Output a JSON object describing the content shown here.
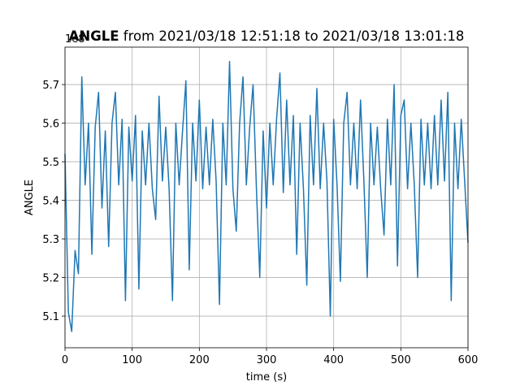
{
  "chart_data": {
    "type": "line",
    "title_variable": "ANGLE",
    "title_range": "from 2021/03/18 12:51:18 to 2021/03/18 13:01:18",
    "offset_label": "1e8",
    "xlabel": "time (s)",
    "ylabel": "ANGLE",
    "xlim": [
      0,
      600
    ],
    "ylim": [
      5.018,
      5.797
    ],
    "xticks": [
      0,
      100,
      200,
      300,
      400,
      500,
      600
    ],
    "yticks": [
      5.1,
      5.2,
      5.3,
      5.4,
      5.5,
      5.6,
      5.7
    ],
    "grid": true,
    "x": [
      0,
      5,
      10,
      15,
      20,
      25,
      30,
      35,
      40,
      45,
      50,
      55,
      60,
      65,
      70,
      75,
      80,
      85,
      90,
      95,
      100,
      105,
      110,
      115,
      120,
      125,
      130,
      135,
      140,
      145,
      150,
      155,
      160,
      165,
      170,
      175,
      180,
      185,
      190,
      195,
      200,
      205,
      210,
      215,
      220,
      225,
      230,
      235,
      240,
      245,
      250,
      255,
      260,
      265,
      270,
      275,
      280,
      285,
      290,
      295,
      300,
      305,
      310,
      315,
      320,
      325,
      330,
      335,
      340,
      345,
      350,
      355,
      360,
      365,
      370,
      375,
      380,
      385,
      390,
      395,
      400,
      405,
      410,
      415,
      420,
      425,
      430,
      435,
      440,
      445,
      450,
      455,
      460,
      465,
      470,
      475,
      480,
      485,
      490,
      495,
      500,
      505,
      510,
      515,
      520,
      525,
      530,
      535,
      540,
      545,
      550,
      555,
      560,
      565,
      570,
      575,
      580,
      585,
      590,
      595,
      600
    ],
    "series": [
      {
        "name": "ANGLE",
        "color": "#1f77b4",
        "values": [
          5.52,
          5.11,
          5.06,
          5.27,
          5.21,
          5.72,
          5.44,
          5.6,
          5.26,
          5.59,
          5.68,
          5.38,
          5.58,
          5.28,
          5.6,
          5.68,
          5.44,
          5.61,
          5.14,
          5.59,
          5.45,
          5.62,
          5.17,
          5.58,
          5.44,
          5.6,
          5.43,
          5.35,
          5.67,
          5.45,
          5.59,
          5.43,
          5.14,
          5.6,
          5.44,
          5.58,
          5.71,
          5.22,
          5.6,
          5.45,
          5.66,
          5.43,
          5.59,
          5.44,
          5.61,
          5.45,
          5.13,
          5.6,
          5.44,
          5.76,
          5.43,
          5.32,
          5.6,
          5.72,
          5.44,
          5.59,
          5.7,
          5.43,
          5.2,
          5.58,
          5.38,
          5.6,
          5.44,
          5.61,
          5.73,
          5.42,
          5.66,
          5.44,
          5.62,
          5.26,
          5.6,
          5.43,
          5.18,
          5.62,
          5.44,
          5.69,
          5.43,
          5.6,
          5.45,
          5.1,
          5.61,
          5.44,
          5.19,
          5.6,
          5.68,
          5.44,
          5.6,
          5.43,
          5.66,
          5.45,
          5.2,
          5.6,
          5.44,
          5.59,
          5.43,
          5.31,
          5.61,
          5.44,
          5.7,
          5.23,
          5.62,
          5.66,
          5.43,
          5.6,
          5.44,
          5.2,
          5.61,
          5.44,
          5.6,
          5.43,
          5.62,
          5.44,
          5.66,
          5.45,
          5.68,
          5.14,
          5.6,
          5.43,
          5.61,
          5.45,
          5.29
        ]
      }
    ]
  }
}
